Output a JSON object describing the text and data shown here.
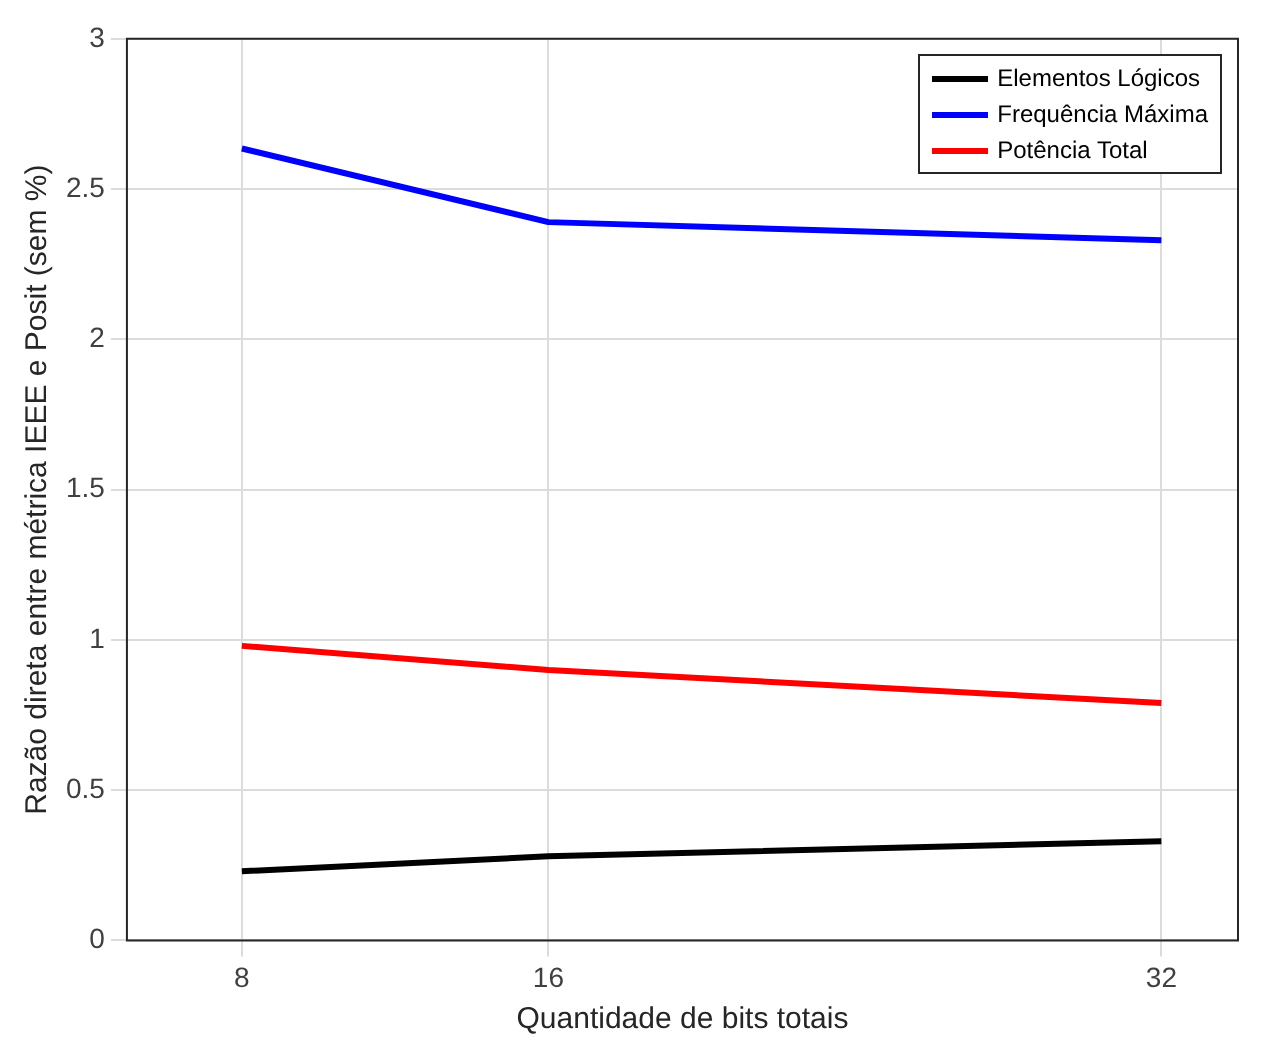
{
  "chart_data": {
    "type": "line",
    "xlabel": "Quantidade de bits totais",
    "ylabel": "Razão direta entre métrica IEEE e Posit (sem %)",
    "x": [
      8,
      16,
      32
    ],
    "series": [
      {
        "name": "Elementos Lógicos",
        "color": "#000000",
        "values": [
          0.23,
          0.28,
          0.33
        ]
      },
      {
        "name": "Frequência Máxima",
        "color": "#0000ff",
        "values": [
          2.635,
          2.39,
          2.33
        ]
      },
      {
        "name": "Potência Total",
        "color": "#ff0000",
        "values": [
          0.98,
          0.9,
          0.79
        ]
      }
    ],
    "xlim": [
      5,
      34
    ],
    "xticks": [
      8,
      16,
      32
    ],
    "ylim": [
      0,
      3
    ],
    "yticks": [
      0,
      0.5,
      1,
      1.5,
      2,
      2.5,
      3
    ],
    "grid": true,
    "legend": "top right",
    "marker": "none",
    "line_style": "solid"
  }
}
